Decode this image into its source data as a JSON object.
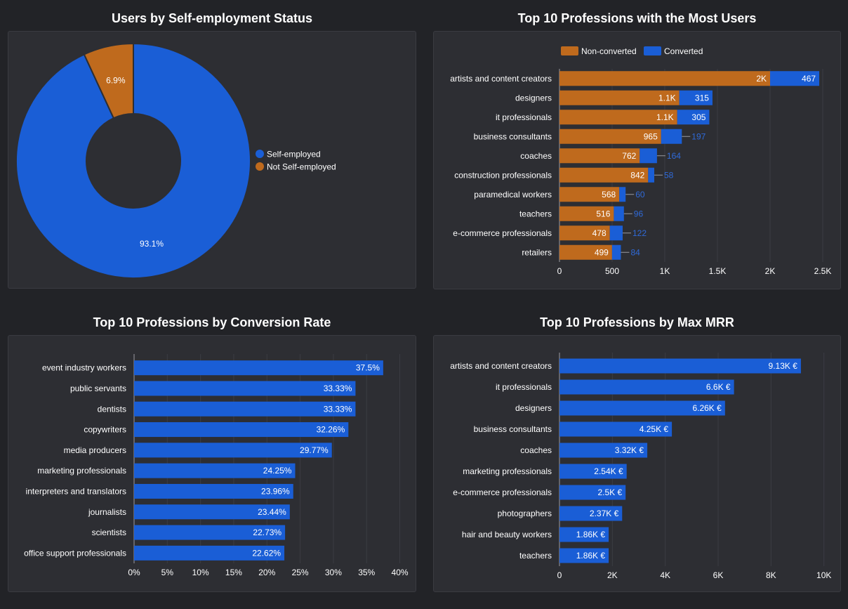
{
  "colors": {
    "background": "#222327",
    "panel": "#2d2e33",
    "converted": "#1a5ed6",
    "non_converted": "#bf6a1d",
    "self_employed": "#1a5ed6",
    "not_self_employed": "#bf6a1d",
    "grid": "#3b3c43",
    "text": "#ffffff",
    "outside_label": "#2f6ad8"
  },
  "chart_data": [
    {
      "id": "self-employment",
      "type": "pie",
      "title": "Users by Self-employment Status",
      "donut": true,
      "labels": [
        "Self-employed",
        "Not Self-employed"
      ],
      "values": [
        93.1,
        6.9
      ],
      "value_labels": [
        "93.1%",
        "6.9%"
      ],
      "legend": "right"
    },
    {
      "id": "top-professions-users",
      "type": "bar",
      "orientation": "horizontal",
      "stacked": true,
      "title": "Top 10 Professions with the Most Users",
      "categories": [
        "artists and content creators",
        "designers",
        "it professionals",
        "business consultants",
        "coaches",
        "construction professionals",
        "paramedical workers",
        "teachers",
        "e-commerce professionals",
        "retailers"
      ],
      "series": [
        {
          "name": "Non-converted",
          "values": [
            2000,
            1138,
            1118,
            965,
            762,
            842,
            568,
            516,
            478,
            499
          ],
          "labels": [
            "2K",
            "1.1K",
            "1.1K",
            "965",
            "762",
            "842",
            "568",
            "516",
            "478",
            "499"
          ]
        },
        {
          "name": "Converted",
          "values": [
            467,
            315,
            305,
            197,
            164,
            58,
            60,
            96,
            122,
            84
          ],
          "labels": [
            "467",
            "315",
            "305",
            "197",
            "164",
            "58",
            "60",
            "96",
            "122",
            "84"
          ]
        }
      ],
      "xlim": [
        0,
        2600
      ],
      "xticks": [
        0,
        500,
        1000,
        1500,
        2000,
        2500
      ],
      "xtick_labels": [
        "0",
        "500",
        "1K",
        "1.5K",
        "2K",
        "2.5K"
      ],
      "legend": "top"
    },
    {
      "id": "conversion-rate",
      "type": "bar",
      "orientation": "horizontal",
      "title": "Top 10 Professions by Conversion Rate",
      "categories": [
        "event industry workers",
        "public servants",
        "dentists",
        "copywriters",
        "media producers",
        "marketing professionals",
        "interpreters and translators",
        "journalists",
        "scientists",
        "office support professionals"
      ],
      "values": [
        37.5,
        33.33,
        33.33,
        32.26,
        29.77,
        24.25,
        23.96,
        23.44,
        22.73,
        22.62
      ],
      "labels": [
        "37.5%",
        "33.33%",
        "33.33%",
        "32.26%",
        "29.77%",
        "24.25%",
        "23.96%",
        "23.44%",
        "22.73%",
        "22.62%"
      ],
      "xlim": [
        0,
        41
      ],
      "xticks": [
        0,
        5,
        10,
        15,
        20,
        25,
        30,
        35,
        40
      ],
      "xtick_labels": [
        "0%",
        "5%",
        "10%",
        "15%",
        "20%",
        "25%",
        "30%",
        "35%",
        "40%"
      ]
    },
    {
      "id": "max-mrr",
      "type": "bar",
      "orientation": "horizontal",
      "title": "Top 10 Professions by Max MRR",
      "categories": [
        "artists and content creators",
        "it professionals",
        "designers",
        "business consultants",
        "coaches",
        "marketing professionals",
        "e-commerce professionals",
        "photographers",
        "hair and beauty workers",
        "teachers"
      ],
      "values": [
        9130,
        6600,
        6260,
        4250,
        3320,
        2540,
        2500,
        2370,
        1860,
        1860
      ],
      "labels": [
        "9.13K €",
        "6.6K €",
        "6.26K €",
        "4.25K €",
        "3.32K €",
        "2.54K €",
        "2.5K €",
        "2.37K €",
        "1.86K €",
        "1.86K €"
      ],
      "xlim": [
        0,
        10300
      ],
      "xticks": [
        0,
        2000,
        4000,
        6000,
        8000,
        10000
      ],
      "xtick_labels": [
        "0",
        "2K",
        "4K",
        "6K",
        "8K",
        "10K"
      ]
    }
  ]
}
